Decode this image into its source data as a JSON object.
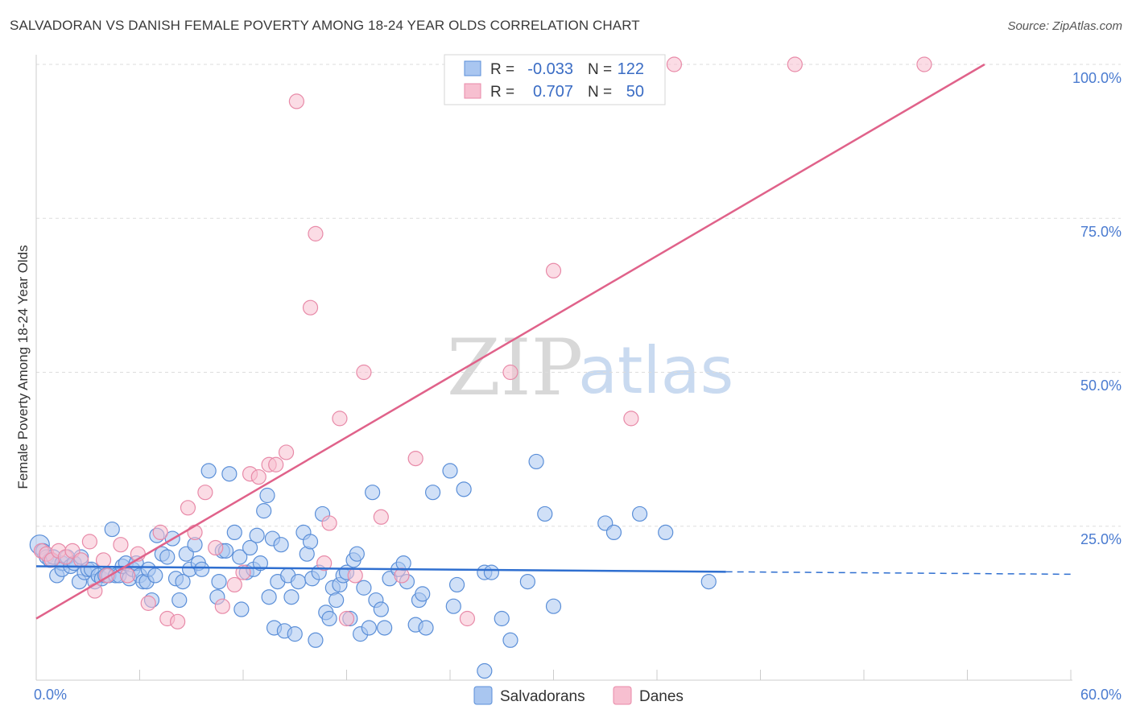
{
  "title": "SALVADORAN VS DANISH FEMALE POVERTY AMONG 18-24 YEAR OLDS CORRELATION CHART",
  "source": "Source: ZipAtlas.com",
  "watermark": {
    "zip": "ZIP",
    "atlas": "atlas"
  },
  "colors": {
    "blue_fill": "#a9c6f0",
    "blue_stroke": "#5b8fd8",
    "blue_line": "#2f6fd0",
    "pink_fill": "#f7bfd0",
    "pink_stroke": "#e88aa8",
    "pink_line": "#e0628a",
    "grid": "#dddddd",
    "tick_text": "#4a7bd0"
  },
  "legend": {
    "rows": [
      {
        "r_label": "R =",
        "r_value": "-0.033",
        "n_label": "N =",
        "n_value": "122"
      },
      {
        "r_label": "R =",
        "r_value": "0.707",
        "n_label": "N =",
        "n_value": "50"
      }
    ]
  },
  "chart_data": {
    "type": "scatter",
    "title": "SALVADORAN VS DANISH FEMALE POVERTY AMONG 18-24 YEAR OLDS CORRELATION CHART",
    "xlabel": "",
    "ylabel": "Female Poverty Among 18-24 Year Olds",
    "xlim": [
      0,
      60
    ],
    "ylim": [
      0,
      100
    ],
    "x_tick_labels": [
      "0.0%",
      "60.0%"
    ],
    "y_tick_labels": [
      "25.0%",
      "50.0%",
      "75.0%",
      "100.0%"
    ],
    "y_ticks": [
      25,
      50,
      75,
      100
    ],
    "grid": true,
    "legend_position": "top-center",
    "series": [
      {
        "name": "Salvadorans",
        "trend": {
          "x": [
            0,
            40
          ],
          "y": [
            18.5,
            17.6
          ],
          "dashed_to": [
            60,
            17.2
          ]
        },
        "points": [
          [
            0.2,
            22
          ],
          [
            0.4,
            21
          ],
          [
            0.6,
            20
          ],
          [
            0.8,
            19.5
          ],
          [
            1,
            20
          ],
          [
            1.2,
            17
          ],
          [
            1.5,
            19
          ],
          [
            1.5,
            18
          ],
          [
            1.8,
            20
          ],
          [
            2,
            18.5
          ],
          [
            2.2,
            19
          ],
          [
            2.5,
            16
          ],
          [
            2.6,
            20
          ],
          [
            2.8,
            17.5
          ],
          [
            3,
            18
          ],
          [
            3.2,
            18
          ],
          [
            3.4,
            16
          ],
          [
            3.6,
            17
          ],
          [
            3.8,
            16.5
          ],
          [
            4,
            17
          ],
          [
            4.2,
            17
          ],
          [
            4.4,
            24.5
          ],
          [
            4.6,
            17
          ],
          [
            4.8,
            17
          ],
          [
            5,
            18.5
          ],
          [
            5.2,
            19
          ],
          [
            5.4,
            16.5
          ],
          [
            5.6,
            18
          ],
          [
            5.8,
            19
          ],
          [
            6,
            17
          ],
          [
            6.2,
            16
          ],
          [
            6.4,
            16
          ],
          [
            6.5,
            18
          ],
          [
            6.7,
            13
          ],
          [
            6.9,
            17
          ],
          [
            7,
            23.5
          ],
          [
            7.3,
            20.5
          ],
          [
            7.6,
            20
          ],
          [
            7.9,
            23
          ],
          [
            8.1,
            16.5
          ],
          [
            8.3,
            13
          ],
          [
            8.5,
            16
          ],
          [
            8.7,
            20.5
          ],
          [
            8.9,
            18
          ],
          [
            9.2,
            22
          ],
          [
            9.4,
            19
          ],
          [
            9.6,
            18
          ],
          [
            10,
            34
          ],
          [
            10.5,
            13.5
          ],
          [
            10.6,
            16
          ],
          [
            10.8,
            21
          ],
          [
            11,
            21
          ],
          [
            11.2,
            33.5
          ],
          [
            11.5,
            24
          ],
          [
            11.8,
            20
          ],
          [
            11.9,
            11.5
          ],
          [
            12.2,
            17.5
          ],
          [
            12.4,
            21.5
          ],
          [
            12.6,
            18
          ],
          [
            12.8,
            23.5
          ],
          [
            13,
            19
          ],
          [
            13.2,
            27.5
          ],
          [
            13.4,
            30
          ],
          [
            13.5,
            13.5
          ],
          [
            13.7,
            23
          ],
          [
            13.8,
            8.5
          ],
          [
            14,
            16
          ],
          [
            14.2,
            22
          ],
          [
            14.4,
            8
          ],
          [
            14.6,
            17
          ],
          [
            14.8,
            13.5
          ],
          [
            15,
            7.5
          ],
          [
            15.2,
            16
          ],
          [
            15.5,
            24
          ],
          [
            15.7,
            20.5
          ],
          [
            15.9,
            22.5
          ],
          [
            16,
            16.5
          ],
          [
            16.2,
            6.5
          ],
          [
            16.4,
            17.5
          ],
          [
            16.6,
            27
          ],
          [
            16.8,
            11
          ],
          [
            17,
            10
          ],
          [
            17.2,
            15
          ],
          [
            17.4,
            13
          ],
          [
            17.6,
            15.5
          ],
          [
            17.8,
            17
          ],
          [
            18,
            17.5
          ],
          [
            18.2,
            10
          ],
          [
            18.4,
            19.5
          ],
          [
            18.6,
            20.5
          ],
          [
            18.8,
            7.5
          ],
          [
            19,
            15
          ],
          [
            19.3,
            8.5
          ],
          [
            19.5,
            30.5
          ],
          [
            19.7,
            13
          ],
          [
            20,
            11.5
          ],
          [
            20.2,
            8.5
          ],
          [
            20.5,
            16.5
          ],
          [
            21,
            18
          ],
          [
            21.3,
            19
          ],
          [
            21.5,
            16
          ],
          [
            22,
            9
          ],
          [
            22.2,
            13
          ],
          [
            22.4,
            14
          ],
          [
            22.6,
            8.5
          ],
          [
            23,
            30.5
          ],
          [
            24,
            34
          ],
          [
            24.2,
            12
          ],
          [
            24.4,
            15.5
          ],
          [
            24.8,
            31
          ],
          [
            26,
            17.5
          ],
          [
            26.4,
            17.5
          ],
          [
            27,
            10
          ],
          [
            27.5,
            6.5
          ],
          [
            28.5,
            16
          ],
          [
            29,
            35.5
          ],
          [
            29.5,
            27
          ],
          [
            30,
            12
          ],
          [
            33,
            25.5
          ],
          [
            33.5,
            24
          ],
          [
            35,
            27
          ],
          [
            36.5,
            24
          ],
          [
            39,
            16
          ],
          [
            26,
            1.5
          ]
        ]
      },
      {
        "name": "Danes",
        "trend": {
          "x": [
            0,
            55
          ],
          "y": [
            10,
            100
          ]
        },
        "points": [
          [
            0.3,
            21
          ],
          [
            0.6,
            20.5
          ],
          [
            0.9,
            19.5
          ],
          [
            1.3,
            21
          ],
          [
            1.7,
            20
          ],
          [
            2.1,
            21
          ],
          [
            2.6,
            19.5
          ],
          [
            3.1,
            22.5
          ],
          [
            3.4,
            14.5
          ],
          [
            3.9,
            19.5
          ],
          [
            4.1,
            17
          ],
          [
            4.9,
            22
          ],
          [
            5.3,
            17
          ],
          [
            5.9,
            20.5
          ],
          [
            6.5,
            12.5
          ],
          [
            7.2,
            24
          ],
          [
            7.6,
            10
          ],
          [
            8.2,
            9.5
          ],
          [
            8.8,
            28
          ],
          [
            9.2,
            24
          ],
          [
            9.8,
            30.5
          ],
          [
            10.4,
            21.5
          ],
          [
            10.8,
            12
          ],
          [
            11.5,
            15.5
          ],
          [
            12,
            17.5
          ],
          [
            12.4,
            33.5
          ],
          [
            12.9,
            33
          ],
          [
            13.5,
            35
          ],
          [
            13.9,
            35
          ],
          [
            14.5,
            37
          ],
          [
            15.1,
            94
          ],
          [
            15.9,
            60.5
          ],
          [
            16.2,
            72.5
          ],
          [
            16.7,
            19
          ],
          [
            17,
            25.5
          ],
          [
            17.6,
            42.5
          ],
          [
            18,
            10
          ],
          [
            18.5,
            17
          ],
          [
            19,
            50
          ],
          [
            20,
            26.5
          ],
          [
            21.2,
            17
          ],
          [
            22,
            36
          ],
          [
            25,
            10
          ],
          [
            27.5,
            50
          ],
          [
            29,
            100
          ],
          [
            30,
            66.5
          ],
          [
            34.5,
            42.5
          ],
          [
            37,
            100
          ],
          [
            44,
            100
          ],
          [
            51.5,
            100
          ]
        ]
      }
    ]
  },
  "axis": {
    "ylabel": "Female Poverty Among 18-24 Year Olds",
    "x_left": "0.0%",
    "x_right": "60.0%",
    "y_ticks": [
      "25.0%",
      "50.0%",
      "75.0%",
      "100.0%"
    ]
  },
  "bottom_legend": {
    "blue": "Salvadorans",
    "pink": "Danes"
  }
}
